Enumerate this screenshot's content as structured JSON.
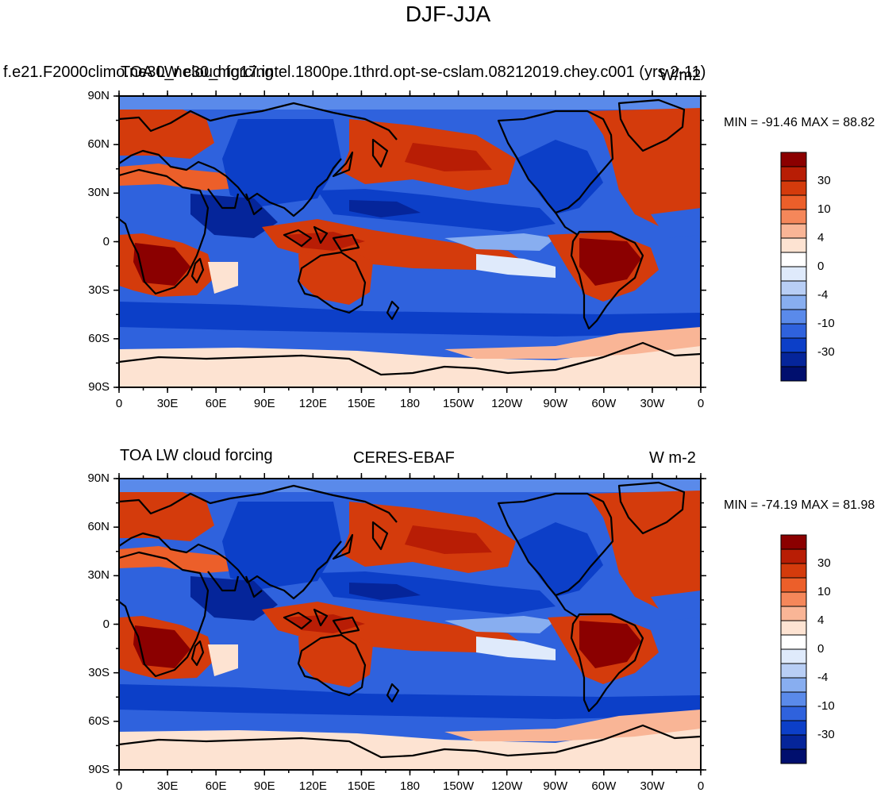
{
  "title": "DJF-JJA",
  "tick_labels": {
    "lat": [
      "90N",
      "60N",
      "30N",
      "0",
      "30S",
      "60S",
      "90S"
    ],
    "lon": [
      "0",
      "30E",
      "60E",
      "90E",
      "120E",
      "150E",
      "180",
      "150W",
      "120W",
      "90W",
      "60W",
      "30W",
      "0"
    ]
  },
  "colorbar": {
    "labels": [
      "30",
      "10",
      "4",
      "0",
      "-4",
      "-10",
      "-30"
    ],
    "colors": [
      "#8b0000",
      "#b81d05",
      "#d43b0c",
      "#ec5f2a",
      "#f5875a",
      "#f9b596",
      "#fde3d2",
      "#ffffff",
      "#dfeafb",
      "#b8cef5",
      "#88aef0",
      "#5a8aea",
      "#2f62dd",
      "#0c3fc8",
      "#05259a",
      "#000f6e"
    ]
  },
  "panels": [
    {
      "left_title": "TOA LW cloud forcing",
      "case_title": "f.e21.F2000climo.ne30_ne30_mg17.intel.1800pe.1thrd.opt-se-cslam.08212019.chey.c001 (yrs 2-11)",
      "units": "W/m2",
      "stats": "MIN = -91.46 MAX =  88.82"
    },
    {
      "left_title": "TOA LW cloud forcing",
      "center_title": "CERES-EBAF",
      "units": "W m-2",
      "stats": "MIN = -74.19 MAX =  81.98"
    }
  ]
}
